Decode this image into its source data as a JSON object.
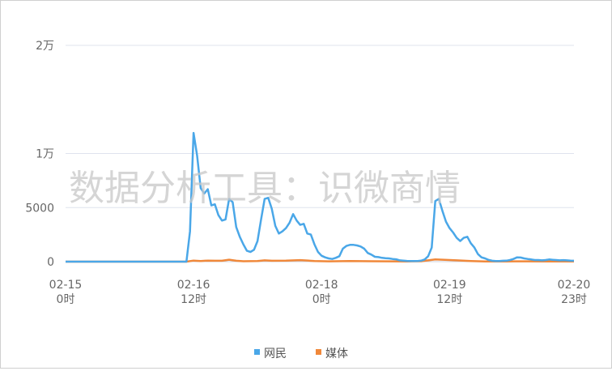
{
  "watermark": "数据分析工具：识微商情",
  "colors": {
    "netizen": "#4aa7e8",
    "media": "#f0883a",
    "grid": "#dfe3ee"
  },
  "chart_data": {
    "type": "line",
    "xlabel": "",
    "ylabel": "",
    "ylim": [
      0,
      20000
    ],
    "y_ticks": [
      {
        "value": 0,
        "label": "0"
      },
      {
        "value": 5000,
        "label": "5000"
      },
      {
        "value": 10000,
        "label": "1万"
      },
      {
        "value": 20000,
        "label": "2万"
      }
    ],
    "x_ticks": [
      {
        "value": 0,
        "date": "02-15",
        "hour": "0时"
      },
      {
        "value": 36,
        "date": "02-16",
        "hour": "12时"
      },
      {
        "value": 72,
        "date": "02-18",
        "hour": "0时"
      },
      {
        "value": 108,
        "date": "02-19",
        "hour": "12时"
      },
      {
        "value": 143,
        "date": "02-20",
        "hour": "23时"
      }
    ],
    "legend_position": "bottom-center",
    "series": [
      {
        "name": "网民",
        "color": "#4aa7e8",
        "points": [
          [
            0,
            0
          ],
          [
            34,
            0
          ],
          [
            35,
            2800
          ],
          [
            36,
            11900
          ],
          [
            37,
            9800
          ],
          [
            38,
            6800
          ],
          [
            39,
            6300
          ],
          [
            40,
            6700
          ],
          [
            41,
            5200
          ],
          [
            42,
            5300
          ],
          [
            43,
            4300
          ],
          [
            44,
            3800
          ],
          [
            45,
            3900
          ],
          [
            46,
            5800
          ],
          [
            47,
            5500
          ],
          [
            48,
            3200
          ],
          [
            49,
            2300
          ],
          [
            50,
            1600
          ],
          [
            51,
            1000
          ],
          [
            52,
            900
          ],
          [
            53,
            1100
          ],
          [
            54,
            1900
          ],
          [
            55,
            3900
          ],
          [
            56,
            5800
          ],
          [
            57,
            5900
          ],
          [
            58,
            4900
          ],
          [
            59,
            3300
          ],
          [
            60,
            2600
          ],
          [
            61,
            2800
          ],
          [
            62,
            3100
          ],
          [
            63,
            3600
          ],
          [
            64,
            4400
          ],
          [
            65,
            3800
          ],
          [
            66,
            3400
          ],
          [
            67,
            3500
          ],
          [
            68,
            2600
          ],
          [
            69,
            2500
          ],
          [
            70,
            1600
          ],
          [
            71,
            900
          ],
          [
            72,
            550
          ],
          [
            73,
            400
          ],
          [
            74,
            300
          ],
          [
            75,
            250
          ],
          [
            76,
            350
          ],
          [
            77,
            500
          ],
          [
            78,
            1200
          ],
          [
            79,
            1450
          ],
          [
            80,
            1550
          ],
          [
            81,
            1550
          ],
          [
            82,
            1500
          ],
          [
            83,
            1400
          ],
          [
            84,
            1200
          ],
          [
            85,
            800
          ],
          [
            86,
            650
          ],
          [
            87,
            450
          ],
          [
            88,
            420
          ],
          [
            89,
            350
          ],
          [
            90,
            320
          ],
          [
            91,
            300
          ],
          [
            92,
            250
          ],
          [
            93,
            220
          ],
          [
            94,
            120
          ],
          [
            95,
            100
          ],
          [
            96,
            70
          ],
          [
            97,
            60
          ],
          [
            98,
            60
          ],
          [
            99,
            60
          ],
          [
            100,
            90
          ],
          [
            101,
            200
          ],
          [
            102,
            500
          ],
          [
            103,
            1300
          ],
          [
            104,
            5600
          ],
          [
            105,
            5800
          ],
          [
            106,
            4700
          ],
          [
            107,
            3700
          ],
          [
            108,
            3100
          ],
          [
            109,
            2700
          ],
          [
            110,
            2200
          ],
          [
            111,
            1900
          ],
          [
            112,
            2200
          ],
          [
            113,
            2300
          ],
          [
            114,
            1700
          ],
          [
            115,
            1300
          ],
          [
            116,
            700
          ],
          [
            117,
            400
          ],
          [
            118,
            300
          ],
          [
            119,
            160
          ],
          [
            120,
            80
          ],
          [
            121,
            60
          ],
          [
            122,
            60
          ],
          [
            123,
            80
          ],
          [
            124,
            90
          ],
          [
            125,
            150
          ],
          [
            126,
            250
          ],
          [
            127,
            400
          ],
          [
            128,
            380
          ],
          [
            129,
            300
          ],
          [
            130,
            250
          ],
          [
            131,
            200
          ],
          [
            132,
            150
          ],
          [
            133,
            150
          ],
          [
            134,
            120
          ],
          [
            135,
            150
          ],
          [
            136,
            200
          ],
          [
            137,
            170
          ],
          [
            138,
            150
          ],
          [
            139,
            120
          ],
          [
            140,
            140
          ],
          [
            141,
            120
          ],
          [
            142,
            100
          ],
          [
            143,
            80
          ]
        ]
      },
      {
        "name": "媒体",
        "color": "#f0883a",
        "points": [
          [
            0,
            0
          ],
          [
            34,
            0
          ],
          [
            36,
            100
          ],
          [
            38,
            60
          ],
          [
            40,
            100
          ],
          [
            42,
            80
          ],
          [
            44,
            80
          ],
          [
            46,
            180
          ],
          [
            48,
            80
          ],
          [
            50,
            40
          ],
          [
            54,
            60
          ],
          [
            56,
            120
          ],
          [
            58,
            80
          ],
          [
            62,
            100
          ],
          [
            66,
            140
          ],
          [
            70,
            60
          ],
          [
            74,
            30
          ],
          [
            80,
            60
          ],
          [
            86,
            40
          ],
          [
            96,
            20
          ],
          [
            100,
            40
          ],
          [
            104,
            200
          ],
          [
            106,
            180
          ],
          [
            110,
            120
          ],
          [
            114,
            60
          ],
          [
            118,
            20
          ],
          [
            124,
            20
          ],
          [
            130,
            30
          ],
          [
            136,
            20
          ],
          [
            143,
            20
          ]
        ]
      }
    ]
  }
}
